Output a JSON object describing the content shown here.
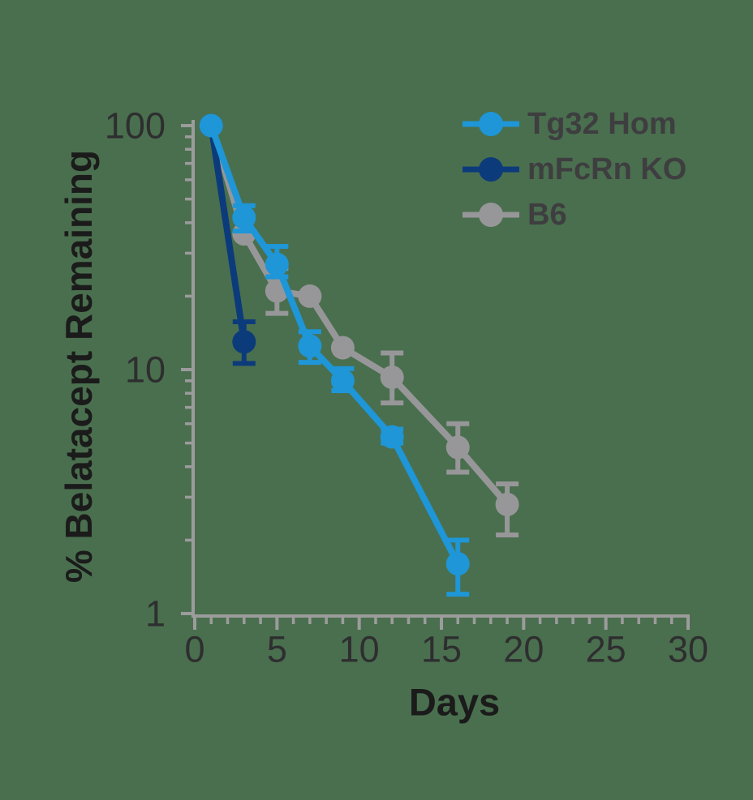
{
  "chart_data": {
    "type": "line",
    "title": "",
    "xlabel": "Days",
    "ylabel": "% Belatacept Remaining",
    "x_axis": {
      "min": 0,
      "max": 30,
      "major_ticks": [
        0,
        5,
        10,
        15,
        20,
        25,
        30
      ],
      "minor_tick_step": 1
    },
    "y_axis": {
      "scale": "log",
      "min": 1,
      "max": 100,
      "major_ticks": [
        100,
        10,
        1
      ],
      "minor_ticks_per_decade": [
        2,
        3,
        4,
        5,
        6,
        7,
        8,
        9
      ]
    },
    "grid": "off",
    "legend_position": "top-right",
    "colors": {
      "background": "#4A6F4E",
      "axis": "#9C9C9C",
      "tick_label": "#2E2E30",
      "axis_title": "#1B1B1B",
      "legend_text": "#3E3E40"
    },
    "series": [
      {
        "name": "B6",
        "color": "#979799",
        "points": [
          {
            "x": 1,
            "y": 100
          },
          {
            "x": 3,
            "y": 36
          },
          {
            "x": 5,
            "y": 21,
            "lo": 17,
            "hi": 26
          },
          {
            "x": 7,
            "y": 20
          },
          {
            "x": 9,
            "y": 12.3
          },
          {
            "x": 12,
            "y": 9.3,
            "lo": 7.3,
            "hi": 11.7
          },
          {
            "x": 16,
            "y": 4.8,
            "lo": 3.8,
            "hi": 6.0
          },
          {
            "x": 19,
            "y": 2.8,
            "lo": 2.1,
            "hi": 3.4
          }
        ]
      },
      {
        "name": "mFcRn KO",
        "color": "#0C3B7B",
        "points": [
          {
            "x": 1,
            "y": 100
          },
          {
            "x": 3,
            "y": 13,
            "lo": 10.6,
            "hi": 15.7
          }
        ]
      },
      {
        "name": "Tg32 Hom",
        "color": "#1E96D7",
        "points": [
          {
            "x": 1,
            "y": 100
          },
          {
            "x": 3,
            "y": 42,
            "lo": 37,
            "hi": 47
          },
          {
            "x": 5,
            "y": 27,
            "lo": 24,
            "hi": 32
          },
          {
            "x": 7,
            "y": 12.5,
            "lo": 10.7,
            "hi": 14.3
          },
          {
            "x": 9,
            "y": 9.0,
            "lo": 8.2,
            "hi": 10.1
          },
          {
            "x": 12,
            "y": 5.3,
            "lo": 5.0,
            "hi": 5.7
          },
          {
            "x": 16,
            "y": 1.6,
            "lo": 1.2,
            "hi": 2.0
          }
        ]
      }
    ],
    "legend_order": [
      "Tg32 Hom",
      "mFcRn KO",
      "B6"
    ]
  }
}
